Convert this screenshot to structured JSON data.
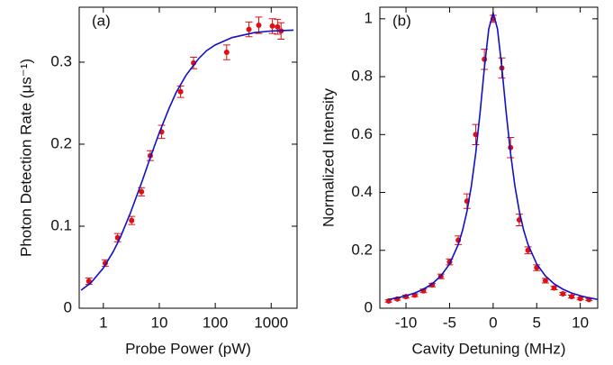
{
  "chart_data": [
    {
      "type": "scatter",
      "panel_label": "(a)",
      "x_label": "Probe Power (pW)",
      "y_label": "Photon Detection Rate (μs⁻¹)",
      "xscale": "log",
      "xlim": [
        0.37,
        2900
      ],
      "ylim": [
        0,
        0.367
      ],
      "xticks": [
        1,
        10,
        100,
        1000
      ],
      "yticks": [
        0,
        0.1,
        0.2,
        0.3
      ],
      "series": [
        {
          "style": "points",
          "color": "#e01010",
          "x": [
            0.55,
            1.08,
            1.8,
            3.2,
            4.8,
            6.9,
            11,
            24,
            41,
            160,
            400,
            600,
            1050,
            1300,
            1500
          ],
          "values": [
            0.033,
            0.055,
            0.086,
            0.107,
            0.142,
            0.186,
            0.215,
            0.264,
            0.299,
            0.312,
            0.34,
            0.345,
            0.344,
            0.343,
            0.338
          ],
          "errors": [
            0.004,
            0.004,
            0.005,
            0.005,
            0.005,
            0.006,
            0.008,
            0.007,
            0.007,
            0.009,
            0.009,
            0.01,
            0.009,
            0.009,
            0.01
          ]
        },
        {
          "style": "line",
          "color": "#1010c8",
          "x": [
            0.4,
            0.6,
            1,
            1.5,
            2,
            3,
            5,
            7,
            10,
            15,
            20,
            30,
            50,
            70,
            100,
            200,
            500,
            1000,
            2500
          ],
          "values": [
            0.022,
            0.031,
            0.049,
            0.069,
            0.086,
            0.115,
            0.156,
            0.185,
            0.214,
            0.244,
            0.263,
            0.284,
            0.304,
            0.314,
            0.321,
            0.33,
            0.336,
            0.338,
            0.339
          ]
        }
      ]
    },
    {
      "type": "scatter",
      "panel_label": "(b)",
      "x_label": "Cavity Detuning (MHz)",
      "y_label": "Normalized Intensity",
      "xscale": "linear",
      "xlim": [
        -13,
        12
      ],
      "ylim": [
        0,
        1.04
      ],
      "xticks": [
        -10,
        -5,
        0,
        5,
        10
      ],
      "yticks": [
        0,
        0.2,
        0.4,
        0.6,
        0.8,
        1
      ],
      "series": [
        {
          "style": "points",
          "color": "#e01010",
          "x": [
            -12,
            -11,
            -10,
            -9,
            -8,
            -7,
            -6,
            -5,
            -4,
            -3,
            -2,
            -1,
            0,
            1,
            2,
            3,
            4,
            5,
            6,
            7,
            8,
            9,
            10,
            11
          ],
          "values": [
            0.025,
            0.032,
            0.04,
            0.045,
            0.06,
            0.08,
            0.11,
            0.16,
            0.235,
            0.37,
            0.6,
            0.86,
            1.0,
            0.83,
            0.555,
            0.305,
            0.2,
            0.14,
            0.095,
            0.07,
            0.05,
            0.04,
            0.033,
            0.03
          ],
          "errors": [
            0.004,
            0.004,
            0.005,
            0.005,
            0.006,
            0.006,
            0.008,
            0.01,
            0.015,
            0.025,
            0.035,
            0.035,
            0.012,
            0.035,
            0.035,
            0.02,
            0.012,
            0.01,
            0.008,
            0.006,
            0.005,
            0.005,
            0.004,
            0.004
          ]
        },
        {
          "style": "line",
          "color": "#1010c8",
          "x": [
            -12,
            -11,
            -10,
            -9,
            -8,
            -7,
            -6,
            -5,
            -4,
            -3.5,
            -3,
            -2.5,
            -2,
            -1.5,
            -1,
            -0.5,
            0,
            0.5,
            1,
            1.5,
            2,
            2.5,
            3,
            3.5,
            4,
            5,
            6,
            7,
            8,
            9,
            10,
            11,
            12
          ],
          "values": [
            0.0303,
            0.0359,
            0.0431,
            0.0527,
            0.0658,
            0.0842,
            0.1113,
            0.1529,
            0.2204,
            0.27,
            0.3354,
            0.422,
            0.5349,
            0.6754,
            0.8314,
            0.9653,
            1.02,
            0.9653,
            0.8314,
            0.6754,
            0.5349,
            0.422,
            0.3354,
            0.27,
            0.2204,
            0.1529,
            0.1113,
            0.0842,
            0.0658,
            0.0527,
            0.0431,
            0.0359,
            0.0303
          ]
        }
      ]
    }
  ]
}
